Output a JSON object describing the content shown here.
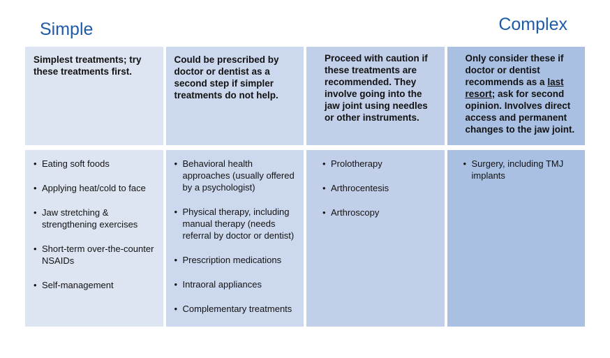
{
  "scale": {
    "left": "Simple",
    "right": "Complex"
  },
  "accent_color": "#1e5ba8",
  "text_color": "#121212",
  "columns": [
    {
      "name": "simplest",
      "color": "#dee5f2",
      "header_segments": [
        {
          "text": "Simplest treatments; try these treatments first.",
          "underline": false
        }
      ],
      "items": [
        "Eating soft foods",
        "Applying heat/cold to face",
        "Jaw stretching & strengthening exercises",
        "Short-term over-the-counter NSAIDs",
        "Self-management"
      ]
    },
    {
      "name": "second-step",
      "color": "#ccd8ed",
      "header_segments": [
        {
          "text": "Could be prescribed by doctor or dentist as a second step if simpler treatments do not help.",
          "underline": false
        }
      ],
      "items": [
        "Behavioral health approaches (usually offered by a psychologist)",
        "Physical therapy, including manual therapy (needs referral by doctor or dentist)",
        "Prescription medications",
        "Intraoral appliances",
        "Complementary treatments"
      ]
    },
    {
      "name": "proceed-with-caution",
      "color": "#c2cfe9",
      "header_segments": [
        {
          "text": "Proceed with caution if these treatments are recommended. They involve going into the jaw joint using needles or other instruments.",
          "underline": false
        }
      ],
      "items": [
        "Prolotherapy",
        "Arthrocentesis",
        "Arthroscopy"
      ]
    },
    {
      "name": "last-resort",
      "color": "#aac0e2",
      "header_segments": [
        {
          "text": "Only consider these if doctor or dentist recommends as a ",
          "underline": false
        },
        {
          "text": "last resort",
          "underline": true
        },
        {
          "text": "; ask for second opinion. Involves direct access and permanent changes to the jaw joint.",
          "underline": false
        }
      ],
      "items": [
        "Surgery, including TMJ implants"
      ]
    }
  ]
}
